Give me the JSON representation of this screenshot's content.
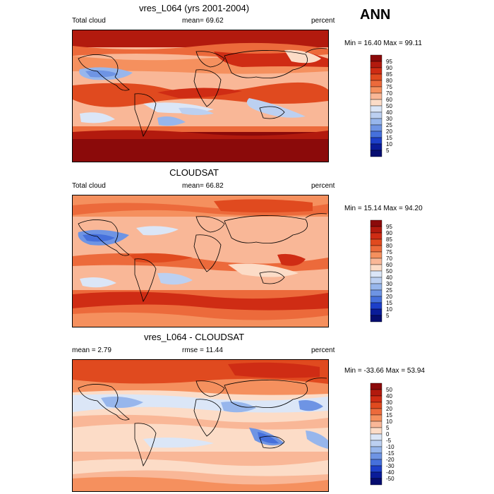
{
  "season": "ANN",
  "units": "percent",
  "panels": [
    {
      "title": "vres_L064 (yrs 2001-2004)",
      "left_label": "Total cloud",
      "center_label": "mean=  69.62",
      "right_label": "percent",
      "minmax": "Min =  16.40 Max =  99.11",
      "colorbar_labels": [
        "95",
        "90",
        "85",
        "80",
        "75",
        "70",
        "60",
        "50",
        "40",
        "30",
        "25",
        "20",
        "15",
        "10",
        "5"
      ],
      "colorbar_colors": [
        "#8b0a0a",
        "#b21a0e",
        "#cf2c14",
        "#e04a1f",
        "#ec6a3b",
        "#f5905e",
        "#f9b797",
        "#fcdcc7",
        "#dbe6f7",
        "#bcd0f1",
        "#97b6ec",
        "#6e94e4",
        "#4670dc",
        "#1d3fc9",
        "#0a1c99",
        "#060d70"
      ]
    },
    {
      "title": "CLOUDSAT",
      "left_label": "Total cloud",
      "center_label": "mean=  66.82",
      "right_label": "percent",
      "minmax": "Min =  15.14 Max =  94.20",
      "colorbar_labels": [
        "95",
        "90",
        "85",
        "80",
        "75",
        "70",
        "60",
        "50",
        "40",
        "30",
        "25",
        "20",
        "15",
        "10",
        "5"
      ],
      "colorbar_colors": [
        "#8b0a0a",
        "#b21a0e",
        "#cf2c14",
        "#e04a1f",
        "#ec6a3b",
        "#f5905e",
        "#f9b797",
        "#fcdcc7",
        "#dbe6f7",
        "#bcd0f1",
        "#97b6ec",
        "#6e94e4",
        "#4670dc",
        "#1d3fc9",
        "#0a1c99",
        "#060d70"
      ]
    },
    {
      "title": "vres_L064 - CLOUDSAT",
      "left_label": "mean =   2.79",
      "center_label": "rmse =  11.44",
      "right_label": "percent",
      "minmax": "Min = -33.66 Max =  53.94",
      "colorbar_labels": [
        "50",
        "40",
        "30",
        "20",
        "15",
        "10",
        "5",
        "0",
        "-5",
        "-10",
        "-15",
        "-20",
        "-30",
        "-40",
        "-50"
      ],
      "colorbar_colors": [
        "#8b0a0a",
        "#b21a0e",
        "#cf2c14",
        "#e04a1f",
        "#ec6a3b",
        "#f5905e",
        "#f9b797",
        "#fcdcc7",
        "#dbe6f7",
        "#bcd0f1",
        "#97b6ec",
        "#6e94e4",
        "#4670dc",
        "#1d3fc9",
        "#0a1c99",
        "#060d70"
      ]
    }
  ]
}
